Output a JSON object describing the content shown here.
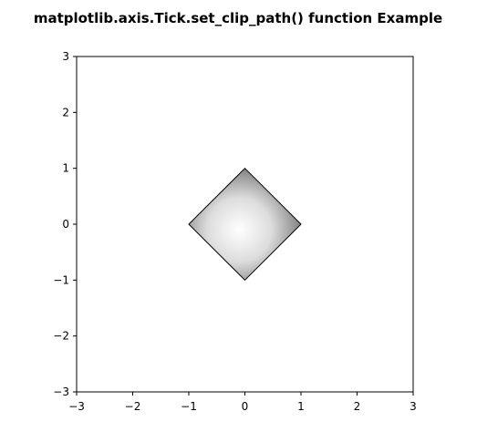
{
  "chart_data": {
    "type": "image",
    "title": "matplotlib.axis.Tick.set_clip_path() function Example",
    "xlabel": "",
    "ylabel": "",
    "xlim": [
      -3,
      3
    ],
    "ylim": [
      -3,
      3
    ],
    "xticks": [
      -3,
      -2,
      -1,
      0,
      1,
      2,
      3
    ],
    "yticks": [
      -3,
      -2,
      -1,
      0,
      1,
      2,
      3
    ],
    "xtick_labels": [
      "−3",
      "−2",
      "−1",
      "0",
      "1",
      "2",
      "3"
    ],
    "ytick_labels": [
      "−3",
      "−2",
      "−1",
      "0",
      "1",
      "2",
      "3"
    ],
    "grid": false,
    "clip_path": {
      "shape": "diamond",
      "vertices": [
        [
          0,
          1
        ],
        [
          1,
          0
        ],
        [
          0,
          -1
        ],
        [
          -1,
          0
        ]
      ]
    },
    "image": {
      "colormap": "gray",
      "light_center": [
        -0.1,
        -0.1
      ],
      "light_color": "#ffffff",
      "dark_color": "#7a7a7a"
    },
    "colors": {
      "background": "#ffffff",
      "axes_edge": "#000000",
      "clip_edge": "#000000"
    }
  }
}
